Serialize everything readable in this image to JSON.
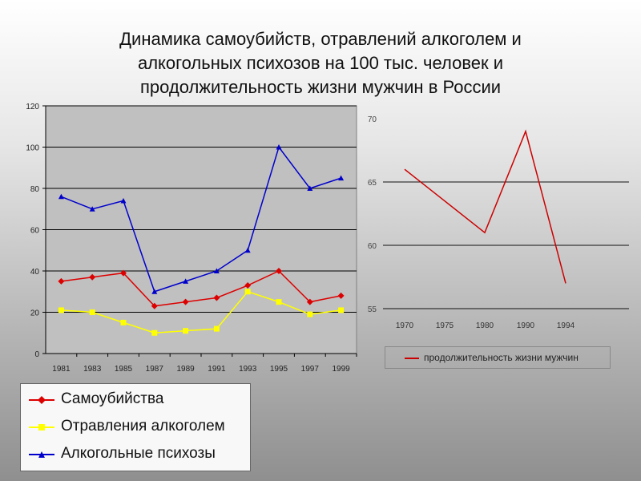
{
  "title": {
    "line1": "Динамика самоубийств, отравлений алкоголем и",
    "line2": "алкогольных психозов на 100 тыс. человек и",
    "line3": "продолжительность жизни мужчин в России"
  },
  "chart_data": [
    {
      "type": "line",
      "categories": [
        "1981",
        "1983",
        "1985",
        "1987",
        "1989",
        "1991",
        "1993",
        "1995",
        "1997",
        "1999"
      ],
      "ylim": [
        0,
        120
      ],
      "yticks": [
        "0",
        "20",
        "40",
        "60",
        "80",
        "100",
        "120"
      ],
      "grid": true,
      "legend_position": "bottom-left",
      "series": [
        {
          "name": "Самоубийства",
          "color": "#dd0000",
          "marker": "diamond",
          "values": [
            35,
            37,
            39,
            23,
            25,
            27,
            33,
            40,
            25,
            28
          ]
        },
        {
          "name": "Отравления алкоголем",
          "color": "#ffff00",
          "marker": "square",
          "values": [
            21,
            20,
            15,
            10,
            11,
            12,
            30,
            25,
            19,
            21
          ]
        },
        {
          "name": "Алкогольные психозы",
          "color": "#0000cc",
          "marker": "triangle",
          "values": [
            76,
            70,
            74,
            30,
            35,
            40,
            50,
            100,
            80,
            85
          ]
        }
      ]
    },
    {
      "type": "line",
      "categories": [
        "1970",
        "1975",
        "1980",
        "1990",
        "1994"
      ],
      "yticks": [
        "70",
        "65",
        "60",
        "55"
      ],
      "grid": true,
      "legend_position": "bottom",
      "series": [
        {
          "name": "продолжительность жизни мужчин",
          "color": "#cc0000",
          "values": [
            66,
            63.5,
            61,
            69,
            57
          ]
        }
      ]
    }
  ]
}
